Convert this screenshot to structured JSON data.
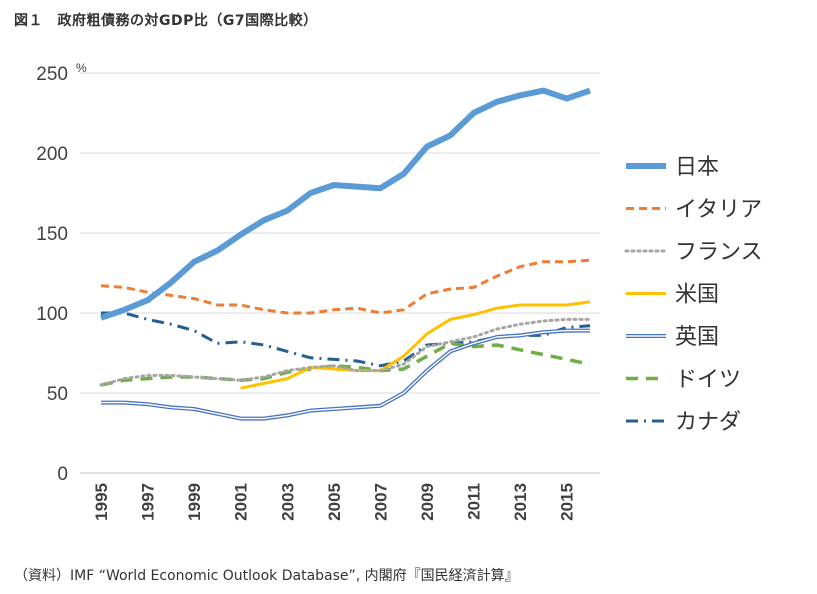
{
  "title": "図１　政府粗債務の対GDP比（G7国際比較）",
  "source": "（資料）IMF “World Economic Outlook Database”, 内閣府『国民経済計算』",
  "chart_data": {
    "type": "line",
    "title": "図１　政府粗債務の対GDP比（G7国際比較）",
    "ylabel": "%",
    "xlabel": "",
    "ylim": [
      0,
      250
    ],
    "yticks": [
      0,
      50,
      100,
      150,
      200,
      250
    ],
    "x": [
      1995,
      1996,
      1997,
      1998,
      1999,
      2000,
      2001,
      2002,
      2003,
      2004,
      2005,
      2006,
      2007,
      2008,
      2009,
      2010,
      2011,
      2012,
      2013,
      2014,
      2015,
      2016
    ],
    "xtick_labels": [
      "1995",
      "1997",
      "1999",
      "2001",
      "2003",
      "2005",
      "2007",
      "2009",
      "2011",
      "2013",
      "2015"
    ],
    "grid": true,
    "legend_position": "right",
    "series": [
      {
        "name": "日本",
        "color": "#5b9bd5",
        "style": "thick",
        "values": [
          97,
          102,
          108,
          119,
          132,
          139,
          149,
          158,
          164,
          175,
          180,
          179,
          178,
          187,
          204,
          211,
          225,
          232,
          236,
          239,
          234,
          239
        ]
      },
      {
        "name": "イタリア",
        "color": "#ed7d31",
        "style": "dashed",
        "values": [
          117,
          116,
          113,
          111,
          109,
          105,
          105,
          102,
          100,
          100,
          102,
          103,
          100,
          102,
          112,
          115,
          116,
          123,
          129,
          132,
          132,
          133
        ]
      },
      {
        "name": "フランス",
        "color": "#a5a5a5",
        "style": "dotted",
        "values": [
          55,
          59,
          61,
          61,
          60,
          59,
          58,
          60,
          64,
          66,
          67,
          64,
          64,
          68,
          79,
          82,
          85,
          90,
          93,
          95,
          96,
          96
        ]
      },
      {
        "name": "米国",
        "color": "#ffc000",
        "style": "solid",
        "values": [
          null,
          null,
          null,
          null,
          null,
          null,
          53,
          56,
          59,
          66,
          65,
          64,
          64,
          73,
          87,
          96,
          99,
          103,
          105,
          105,
          105,
          107
        ]
      },
      {
        "name": "英国",
        "color": "#4472c4",
        "style": "double",
        "values": [
          44,
          44,
          43,
          41,
          40,
          37,
          34,
          34,
          36,
          39,
          40,
          41,
          42,
          50,
          64,
          76,
          81,
          85,
          86,
          88,
          89,
          89
        ]
      },
      {
        "name": "ドイツ",
        "color": "#70ad47",
        "style": "longdash",
        "values": [
          55,
          58,
          59,
          60,
          60,
          59,
          58,
          59,
          63,
          65,
          67,
          66,
          64,
          65,
          73,
          81,
          79,
          80,
          77,
          74,
          71,
          68
        ]
      },
      {
        "name": "カナダ",
        "color": "#255e91",
        "style": "dashdot",
        "values": [
          100,
          100,
          96,
          93,
          89,
          81,
          82,
          80,
          76,
          72,
          71,
          70,
          67,
          70,
          80,
          81,
          82,
          85,
          86,
          86,
          91,
          92
        ]
      }
    ]
  }
}
